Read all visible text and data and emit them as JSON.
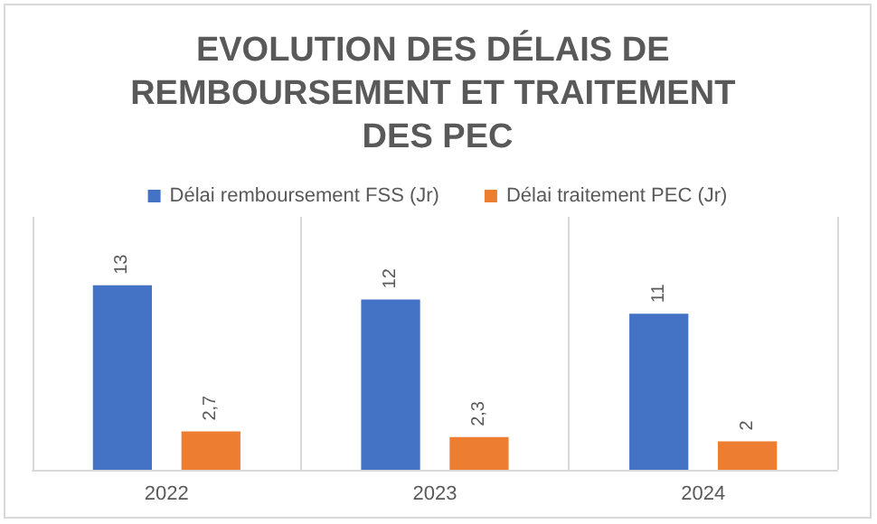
{
  "chart_data": {
    "type": "bar",
    "title": "EVOLUTION DES DÉLAIS DE REMBOURSEMENT ET TRAITEMENT DES PEC",
    "categories": [
      "2022",
      "2023",
      "2024"
    ],
    "series": [
      {
        "name": "Délai remboursement FSS (Jr)",
        "color": "#4472c4",
        "values": [
          13,
          12,
          11
        ],
        "value_labels": [
          "13",
          "12",
          "11"
        ]
      },
      {
        "name": "Délai traitement PEC (Jr)",
        "color": "#ed7d31",
        "values": [
          2.7,
          2.3,
          2
        ],
        "value_labels": [
          "2,7",
          "2,3",
          "2"
        ]
      }
    ],
    "legend": "top",
    "grid": false,
    "tick_labels": "x"
  }
}
